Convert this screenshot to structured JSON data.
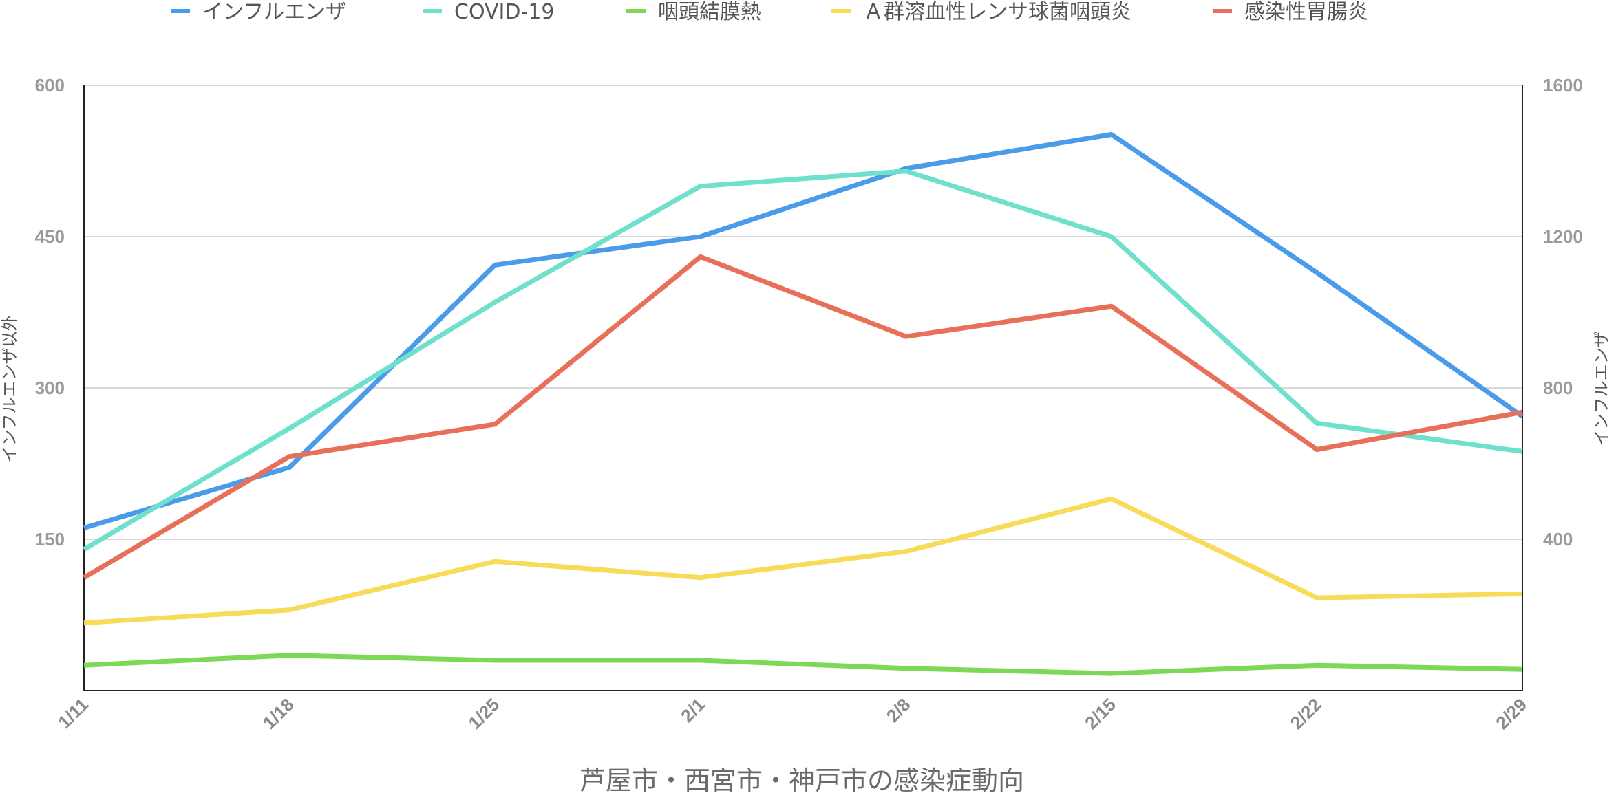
{
  "chart_data": {
    "type": "line",
    "title": "芦屋市・西宮市・神戸市の感染症動向",
    "categories": [
      "1/11",
      "1/18",
      "1/25",
      "2/1",
      "2/8",
      "2/15",
      "2/22",
      "2/29"
    ],
    "y_left": {
      "label": "インフルエンザ以外",
      "ylim": [
        0,
        600
      ],
      "ticks": [
        150,
        300,
        450,
        600
      ]
    },
    "y_right": {
      "label": "インフルエンザ",
      "ylim": [
        0,
        1600
      ],
      "ticks": [
        400,
        800,
        1200,
        1600
      ]
    },
    "grid": true,
    "legend_position": "top",
    "series": [
      {
        "name": "インフルエンザ",
        "axis": "right",
        "color": "#4a9be9",
        "values": [
          430,
          590,
          1125,
          1200,
          1380,
          1470,
          1105,
          725
        ]
      },
      {
        "name": "COVID-19",
        "axis": "left",
        "color": "#6fe0cc",
        "values": [
          140,
          260,
          385,
          500,
          515,
          450,
          265,
          237
        ]
      },
      {
        "name": "咽頭結膜熱",
        "axis": "left",
        "color": "#7dd855",
        "values": [
          25,
          35,
          30,
          30,
          22,
          17,
          25,
          21
        ]
      },
      {
        "name": "Ａ群溶血性レンサ球菌咽頭炎",
        "axis": "left",
        "color": "#f7db59",
        "values": [
          67,
          80,
          128,
          112,
          138,
          190,
          92,
          96
        ]
      },
      {
        "name": "感染性胃腸炎",
        "axis": "left",
        "color": "#e8705b",
        "values": [
          112,
          232,
          264,
          430,
          351,
          381,
          239,
          276
        ]
      }
    ]
  }
}
